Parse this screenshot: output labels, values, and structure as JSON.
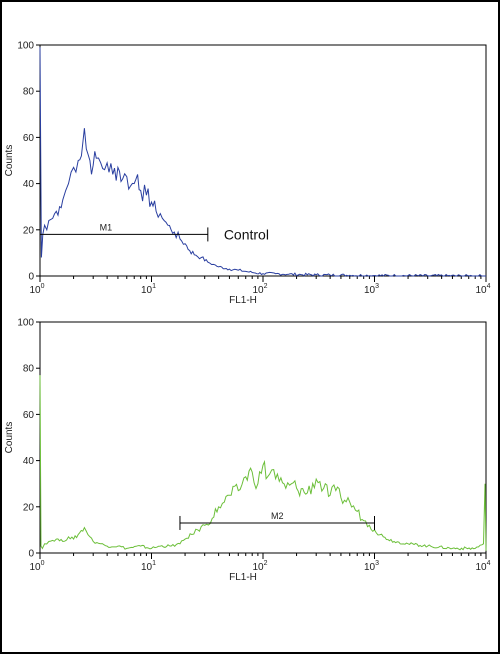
{
  "chart_data": [
    {
      "type": "line",
      "title": "",
      "xlabel": "FL1-H",
      "ylabel": "Counts",
      "xscale": "log",
      "xlim": [
        1,
        10000
      ],
      "ylim": [
        0,
        100
      ],
      "yticks": [
        0,
        20,
        40,
        60,
        80,
        100
      ],
      "xtick_labels": [
        {
          "base": "10",
          "exp": "0"
        },
        {
          "base": "10",
          "exp": "1"
        },
        {
          "base": "10",
          "exp": "2"
        },
        {
          "base": "10",
          "exp": "3"
        },
        {
          "base": "10",
          "exp": "4"
        }
      ],
      "grid": false,
      "color": "#2a3fa0",
      "annotation": "Control",
      "marker": {
        "label": "M1",
        "x_start": 1,
        "x_end": 32,
        "y": 18
      },
      "series": [
        {
          "x": [
            1.0,
            1.03,
            1.06,
            1.1,
            1.15,
            1.2,
            1.3,
            1.4,
            1.5,
            1.6,
            1.7,
            1.8,
            1.9,
            2.0,
            2.1,
            2.2,
            2.35,
            2.5,
            2.6,
            2.8,
            3.0,
            3.2,
            3.5,
            3.8,
            4.0,
            4.5,
            5.0,
            5.5,
            6.0,
            6.5,
            7.0,
            7.5,
            8.0,
            9.0,
            10.0,
            11.0,
            12.0,
            13.0,
            14.0,
            15.0,
            16.0,
            18.0,
            20.0,
            22.0,
            25.0,
            28.0,
            32.0,
            36.0,
            40.0,
            50.0,
            60.0,
            70.0,
            80.0,
            100.0,
            130.0,
            170.0,
            220.0,
            300.0,
            400.0,
            600.0,
            1000.0,
            3000.0,
            10000.0
          ],
          "y": [
            99,
            8,
            18,
            22,
            20,
            24,
            25,
            28,
            30,
            33,
            37,
            40,
            45,
            47,
            45,
            50,
            52,
            64,
            55,
            50,
            48,
            51,
            49,
            46,
            49,
            44,
            47,
            42,
            43,
            39,
            40,
            44,
            37,
            35,
            32,
            28,
            27,
            24,
            22,
            20,
            19,
            16,
            14,
            11,
            9,
            8,
            6,
            5,
            4,
            3,
            2.5,
            2,
            1.5,
            1,
            1,
            0.8,
            0.6,
            0.5,
            0.4,
            0.3,
            0.2,
            0.1,
            0
          ]
        }
      ]
    },
    {
      "type": "line",
      "title": "",
      "xlabel": "FL1-H",
      "ylabel": "Counts",
      "xscale": "log",
      "xlim": [
        1,
        10000
      ],
      "ylim": [
        0,
        100
      ],
      "yticks": [
        0,
        20,
        40,
        60,
        80,
        100
      ],
      "xtick_labels": [
        {
          "base": "10",
          "exp": "0"
        },
        {
          "base": "10",
          "exp": "1"
        },
        {
          "base": "10",
          "exp": "2"
        },
        {
          "base": "10",
          "exp": "3"
        },
        {
          "base": "10",
          "exp": "4"
        }
      ],
      "grid": false,
      "color": "#6cbf3a",
      "annotation": "",
      "marker": {
        "label": "M2",
        "x_start": 18,
        "x_end": 1000,
        "y": 13
      },
      "series": [
        {
          "x": [
            1.0,
            1.02,
            1.05,
            1.1,
            1.2,
            1.4,
            1.6,
            1.8,
            2.0,
            2.2,
            2.5,
            2.8,
            3.0,
            3.5,
            4.0,
            5.0,
            6.0,
            8.0,
            10.0,
            12.0,
            15.0,
            18.0,
            20.0,
            23.0,
            26.0,
            30.0,
            35.0,
            40.0,
            45.0,
            50.0,
            60.0,
            70.0,
            80.0,
            90.0,
            100.0,
            110.0,
            120.0,
            140.0,
            160.0,
            180.0,
            200.0,
            250.0,
            300.0,
            350.0,
            400.0,
            450.0,
            500.0,
            600.0,
            700.0,
            800.0,
            900.0,
            1000.0,
            1200.0,
            1500.0,
            2000.0,
            3000.0,
            5000.0,
            8000.0,
            9500.0,
            9800.0,
            10000.0
          ],
          "y": [
            77,
            3,
            2,
            4,
            5,
            6,
            5,
            7,
            6,
            8,
            11,
            7,
            5,
            4,
            3,
            3,
            2,
            3,
            2,
            3,
            3,
            4,
            6,
            8,
            10,
            12,
            15,
            20,
            22,
            25,
            27,
            33,
            35,
            30,
            38,
            33,
            36,
            31,
            28,
            30,
            28,
            26,
            32,
            28,
            25,
            27,
            24,
            22,
            18,
            14,
            12,
            10,
            7,
            5,
            4,
            3,
            2,
            2,
            4,
            30,
            1
          ]
        }
      ]
    }
  ]
}
